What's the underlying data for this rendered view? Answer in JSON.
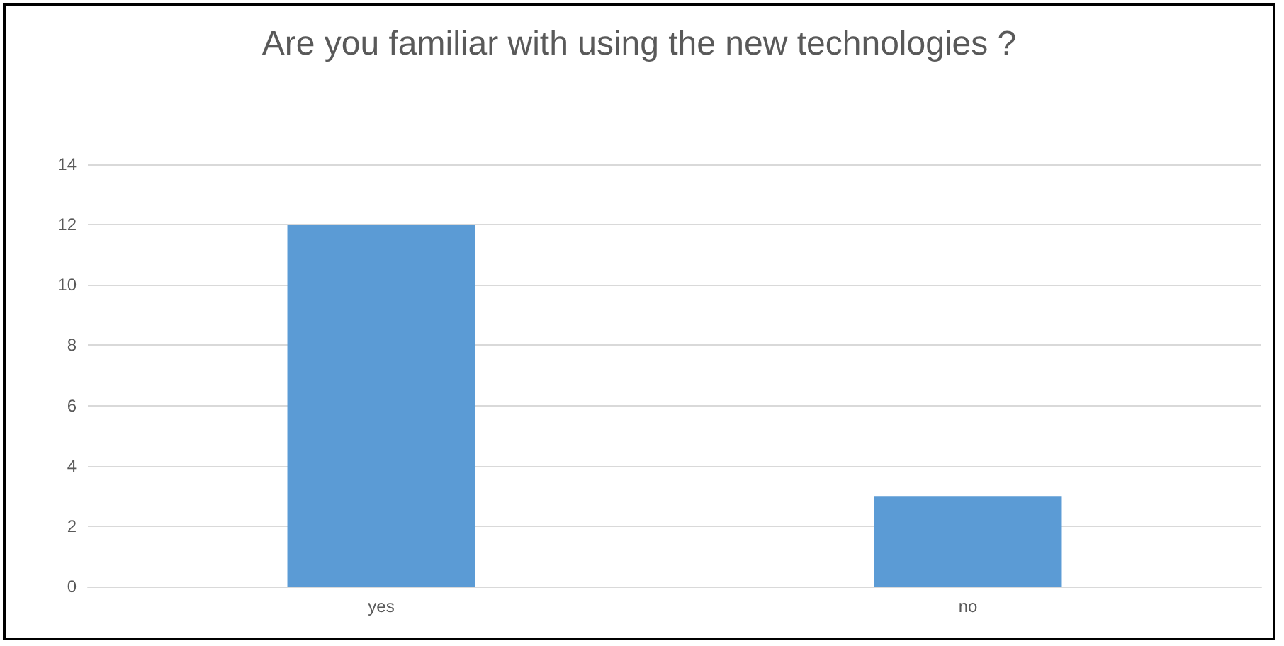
{
  "chart_data": {
    "type": "bar",
    "title": "Are you familiar with using the new technologies ?",
    "categories": [
      "yes",
      "no"
    ],
    "values": [
      12,
      3
    ],
    "color": "#5b9bd5",
    "ylim": [
      0,
      14
    ],
    "yticks": [
      0,
      2,
      4,
      6,
      8,
      10,
      12,
      14
    ],
    "grid": "y"
  }
}
